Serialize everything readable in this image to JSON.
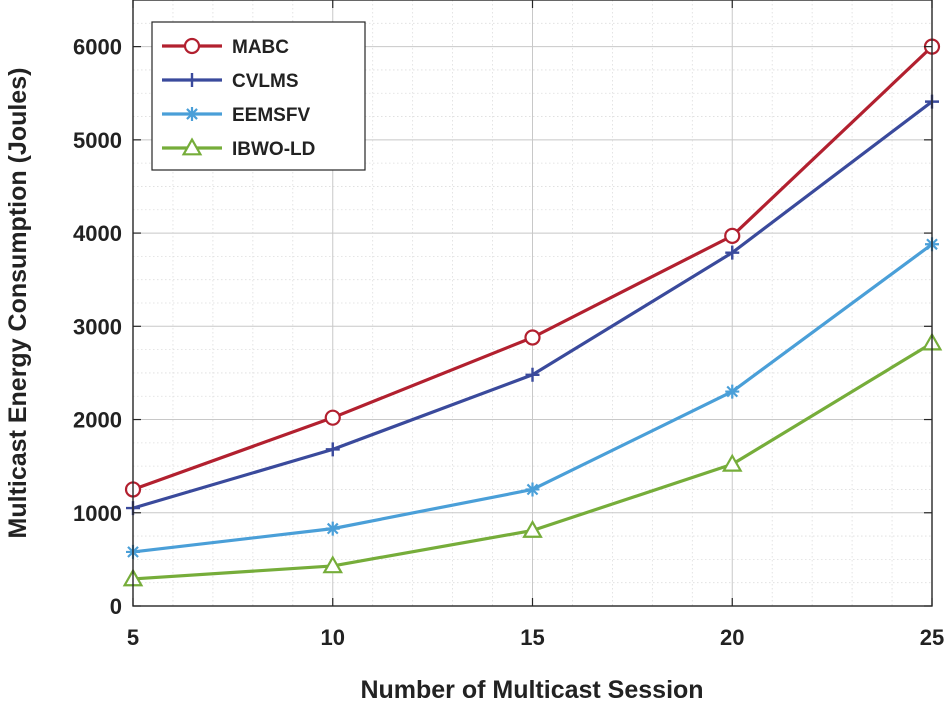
{
  "chart_data": {
    "type": "line",
    "title": "",
    "xlabel": "Number of Multicast Session",
    "ylabel": "Multicast Energy Consumption (Joules)",
    "x": [
      5,
      10,
      15,
      20,
      25
    ],
    "xlim": [
      5,
      25
    ],
    "ylim": [
      0,
      6500
    ],
    "xticks": [
      5,
      10,
      15,
      20,
      25
    ],
    "yticks": [
      0,
      1000,
      2000,
      3000,
      4000,
      5000,
      6000
    ],
    "xtick_labels": [
      "5",
      "10",
      "15",
      "20",
      "25"
    ],
    "ytick_labels": [
      "0",
      "1000",
      "2000",
      "3000",
      "4000",
      "5000",
      "6000"
    ],
    "grid": true,
    "minor_grid": true,
    "legend_position": "top-left",
    "series": [
      {
        "name": "MABC",
        "marker": "circle",
        "color": "#b2202f",
        "values": [
          1250,
          2020,
          2880,
          3970,
          6000
        ]
      },
      {
        "name": "CVLMS",
        "marker": "plus",
        "color": "#3a4a9c",
        "values": [
          1050,
          1680,
          2480,
          3790,
          5410
        ]
      },
      {
        "name": "EEMSFV",
        "marker": "asterisk",
        "color": "#4a9fd8",
        "values": [
          580,
          830,
          1250,
          2300,
          3880
        ]
      },
      {
        "name": "IBWO-LD",
        "marker": "triangle",
        "color": "#76ad3a",
        "values": [
          290,
          430,
          810,
          1520,
          2820
        ]
      }
    ]
  }
}
